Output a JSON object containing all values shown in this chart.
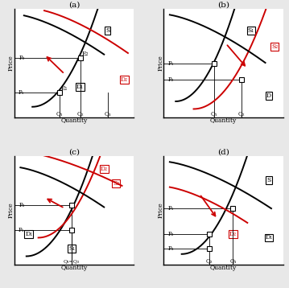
{
  "fig_bg": "#e8e8e8",
  "panel_bg": "#ffffff",
  "black": "#000000",
  "red": "#cc0000",
  "titles": [
    "(a)",
    "(b)",
    "(c)",
    "(d)"
  ],
  "xlabel": "Quantity",
  "ylabel": "Price"
}
